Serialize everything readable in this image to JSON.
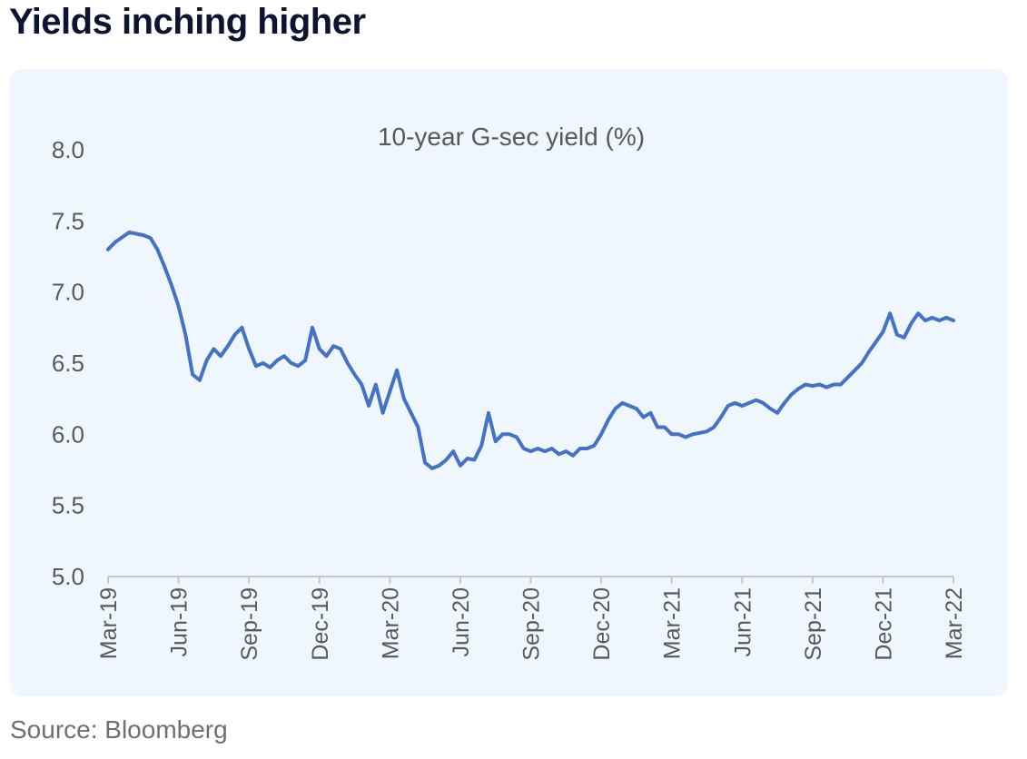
{
  "headline": "Yields inching higher",
  "source": "Source: Bloomberg",
  "chart_data": {
    "type": "line",
    "title": "10-year G-sec yield (%)",
    "xlabel": "",
    "ylabel": "",
    "ylim": [
      5.0,
      8.0
    ],
    "yticks": [
      "5.0",
      "5.5",
      "6.0",
      "6.5",
      "7.0",
      "7.5",
      "8.0"
    ],
    "xticks": [
      "Mar-19",
      "Jun-19",
      "Sep-19",
      "Dec-19",
      "Mar-20",
      "Jun-20",
      "Sep-20",
      "Dec-20",
      "Mar-21",
      "Jun-21",
      "Sep-21",
      "Dec-21",
      "Mar-22"
    ],
    "grid": false,
    "line_color": "#4472c4",
    "series": [
      {
        "x": [
          0,
          0.1,
          0.3,
          0.5,
          0.6,
          0.7,
          0.8,
          0.9,
          1.0,
          1.1,
          1.2,
          1.3,
          1.4,
          1.5,
          1.6,
          1.7,
          1.8,
          1.9,
          2.0,
          2.1,
          2.2,
          2.3,
          2.4,
          2.5,
          2.6,
          2.7,
          2.8,
          2.9,
          3.0,
          3.1,
          3.2,
          3.3,
          3.4,
          3.5,
          3.6,
          3.7,
          3.8,
          3.9,
          4.0,
          4.1,
          4.2,
          4.3,
          4.4,
          4.5,
          4.6,
          4.7,
          4.8,
          4.9,
          5.0,
          5.1,
          5.2,
          5.3,
          5.4,
          5.5,
          5.6,
          5.7,
          5.8,
          5.9,
          6.0,
          6.1,
          6.2,
          6.3,
          6.4,
          6.5,
          6.6,
          6.7,
          6.8,
          6.9,
          7.0,
          7.1,
          7.2,
          7.3,
          7.4,
          7.5,
          7.6,
          7.7,
          7.8,
          7.9,
          8.0,
          8.1,
          8.2,
          8.3,
          8.4,
          8.5,
          8.6,
          8.7,
          8.8,
          8.9,
          9.0,
          9.1,
          9.2,
          9.3,
          9.4,
          9.5,
          9.6,
          9.7,
          9.8,
          9.9,
          10.0,
          10.1,
          10.2,
          10.3,
          10.4,
          10.5,
          10.6,
          10.7,
          10.8,
          10.9,
          11.0,
          11.1,
          11.2,
          11.3,
          11.4,
          11.5,
          11.6,
          11.7,
          11.8,
          11.9,
          12.0
        ],
        "y": [
          7.3,
          7.35,
          7.42,
          7.4,
          7.38,
          7.3,
          7.18,
          7.05,
          6.9,
          6.7,
          6.42,
          6.38,
          6.52,
          6.6,
          6.55,
          6.62,
          6.7,
          6.75,
          6.6,
          6.48,
          6.5,
          6.47,
          6.52,
          6.55,
          6.5,
          6.48,
          6.52,
          6.75,
          6.6,
          6.55,
          6.62,
          6.6,
          6.5,
          6.42,
          6.35,
          6.2,
          6.35,
          6.15,
          6.3,
          6.45,
          6.25,
          6.15,
          6.05,
          5.8,
          5.76,
          5.78,
          5.82,
          5.88,
          5.78,
          5.83,
          5.82,
          5.92,
          6.15,
          5.95,
          6.0,
          6.0,
          5.98,
          5.9,
          5.88,
          5.9,
          5.88,
          5.9,
          5.86,
          5.88,
          5.85,
          5.9,
          5.9,
          5.92,
          6.0,
          6.1,
          6.18,
          6.22,
          6.2,
          6.18,
          6.12,
          6.15,
          6.05,
          6.05,
          6.0,
          6.0,
          5.98,
          6.0,
          6.01,
          6.02,
          6.05,
          6.12,
          6.2,
          6.22,
          6.2,
          6.22,
          6.24,
          6.22,
          6.18,
          6.15,
          6.22,
          6.28,
          6.32,
          6.35,
          6.34,
          6.35,
          6.33,
          6.35,
          6.35,
          6.4,
          6.45,
          6.5,
          6.58,
          6.65,
          6.72,
          6.85,
          6.7,
          6.68,
          6.78,
          6.85,
          6.8,
          6.82,
          6.8,
          6.82,
          6.8
        ]
      }
    ]
  }
}
